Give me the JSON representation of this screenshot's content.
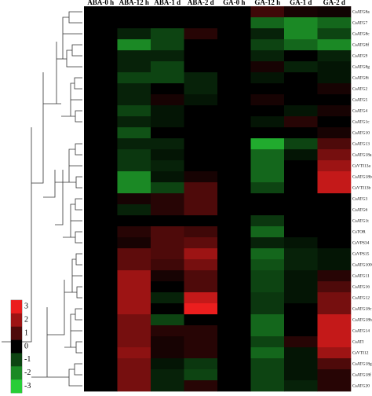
{
  "chart_data": {
    "type": "heatmap",
    "columns": [
      "ABA-0 h",
      "ABA-12 h",
      "ABA-1 d",
      "ABA-2 d",
      "GA-0 h",
      "GA-12 h",
      "GA-1 d",
      "GA-2 d"
    ],
    "rows": [
      "CsATG8a",
      "CsATG7",
      "CsATG8c",
      "CsATG8f",
      "CsATG9",
      "CsATG8g",
      "CsATG8i",
      "CsATG2",
      "CsATG5",
      "CsATG4",
      "CsATG1c",
      "CsATG10",
      "CsATG13",
      "CsATG18a",
      "CsVTI13a",
      "CsATG18b",
      "CsVTI13b",
      "CsATG3",
      "CsATG6",
      "CsATG1t",
      "CsTOR",
      "CsVPS34",
      "CsVPS15",
      "CsATG100",
      "CsATG11",
      "CsATG16",
      "CsATG12",
      "CsATG18c",
      "CsATG18h",
      "CsATG14",
      "CsATI",
      "CsVTI12",
      "CsATG18g",
      "CsATG18f",
      "CsATG20"
    ],
    "values": [
      [
        0,
        0,
        0,
        0,
        0,
        0.8,
        0.3,
        0.2
      ],
      [
        0,
        0,
        0,
        0,
        0,
        -1.5,
        -2,
        -1.5
      ],
      [
        0,
        -0.5,
        -1,
        0.5,
        0,
        -0.5,
        -2,
        -1
      ],
      [
        0,
        -2,
        -1,
        0,
        0,
        -1,
        -1.5,
        -2
      ],
      [
        0,
        -0.5,
        -0.5,
        0,
        0,
        -0.5,
        0,
        -0.5
      ],
      [
        0,
        -0.5,
        -1,
        0,
        0,
        0.3,
        -0.5,
        -0.3
      ],
      [
        0,
        -1,
        -1,
        -0.5,
        0,
        -0.3,
        0,
        -0.3
      ],
      [
        0,
        -0.5,
        0,
        -0.5,
        0,
        0,
        0,
        0.3
      ],
      [
        0,
        -0.5,
        0.3,
        -0.3,
        0,
        0.3,
        0,
        0
      ],
      [
        0,
        -1,
        -0.3,
        0,
        0,
        0,
        -0.3,
        0.3
      ],
      [
        0,
        -0.5,
        -0.3,
        0,
        0,
        -0.3,
        0.5,
        0
      ],
      [
        0,
        -1.2,
        0,
        0,
        0,
        0,
        0,
        0.3
      ],
      [
        0,
        -0.5,
        -0.5,
        0,
        0,
        -2.5,
        -1,
        1
      ],
      [
        0,
        -0.8,
        -0.3,
        0,
        0,
        -1.5,
        -0.3,
        1.5
      ],
      [
        0,
        -0.8,
        -0.5,
        0,
        0,
        -1.5,
        0,
        2
      ],
      [
        0,
        -2,
        -0.3,
        0.3,
        0,
        -1.5,
        0,
        2.5
      ],
      [
        0,
        -2,
        -1,
        1,
        0,
        -1,
        0,
        2.5
      ],
      [
        0,
        0.3,
        0.5,
        1,
        0,
        0,
        0,
        0
      ],
      [
        0,
        -0.5,
        0.5,
        1,
        0,
        0,
        0,
        0
      ],
      [
        0,
        0,
        0,
        0,
        0,
        -0.8,
        0,
        0
      ],
      [
        0,
        0.5,
        1,
        0.8,
        0,
        -1.5,
        0,
        0
      ],
      [
        0,
        0.3,
        1,
        1.2,
        0,
        -0.5,
        -0.3,
        0
      ],
      [
        0,
        1.2,
        1,
        2,
        0,
        -1.5,
        -0.5,
        -0.3
      ],
      [
        0,
        1.2,
        0.8,
        1.5,
        0,
        -1.2,
        -0.5,
        -0.3
      ],
      [
        0,
        2,
        0.3,
        1,
        0,
        -1,
        -0.3,
        0.5
      ],
      [
        0,
        2,
        0,
        1,
        0,
        -1,
        -0.3,
        1
      ],
      [
        0,
        2,
        -0.5,
        2.5,
        0,
        -0.8,
        -0.3,
        1.5
      ],
      [
        0,
        2,
        0,
        3,
        0,
        -0.8,
        0,
        1.5
      ],
      [
        0,
        1.5,
        -1,
        0,
        0,
        -1.5,
        0,
        2.5
      ],
      [
        0,
        1.5,
        0.5,
        0.5,
        0,
        -1.5,
        0,
        2.5
      ],
      [
        0,
        1.5,
        0.3,
        0.5,
        0,
        -1,
        0.5,
        2.5
      ],
      [
        0,
        1.8,
        0.3,
        0.5,
        0,
        -1.5,
        -0.3,
        2
      ],
      [
        0,
        1.5,
        -0.3,
        -0.8,
        0,
        -1,
        -0.3,
        1
      ],
      [
        0,
        1.5,
        -0.5,
        -1,
        0,
        -1,
        -0.3,
        0.5
      ],
      [
        0,
        1.5,
        -0.5,
        0.5,
        0,
        -1,
        -0.5,
        0.5
      ]
    ],
    "zlim": [
      -3,
      3
    ],
    "colorbar_ticks": [
      3,
      2,
      1,
      0,
      -1,
      -2,
      -3
    ]
  }
}
